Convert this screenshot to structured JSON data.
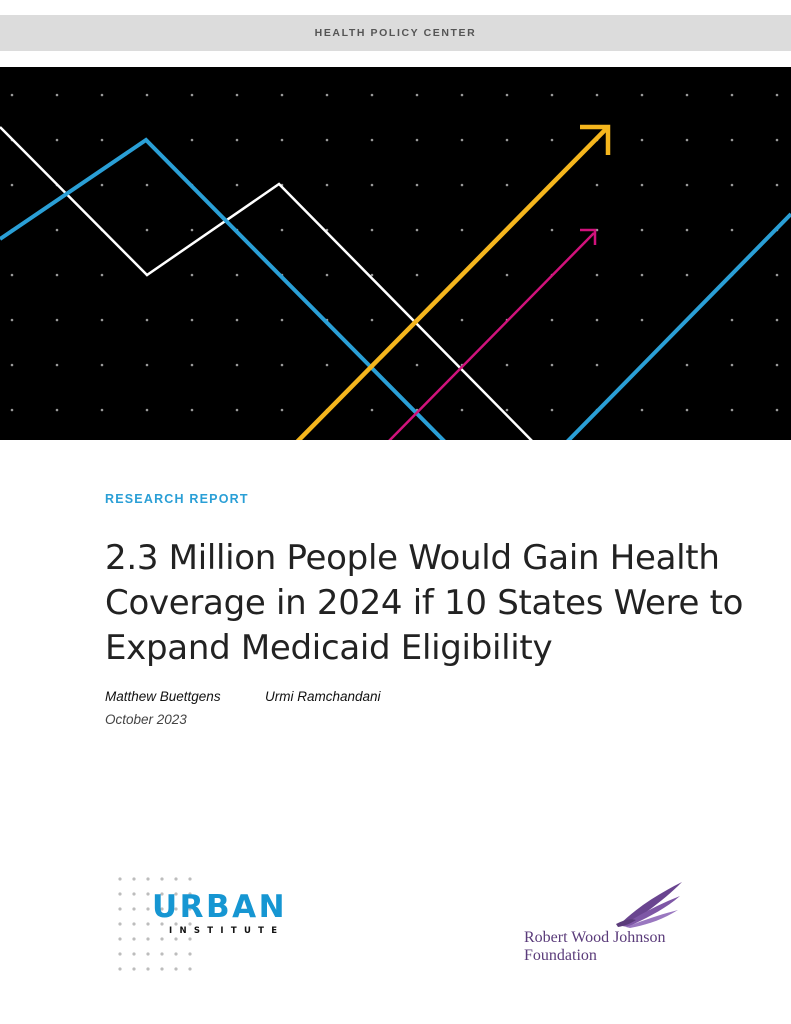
{
  "header": {
    "center_name": "HEALTH POLICY CENTER"
  },
  "cover": {
    "report_type": "RESEARCH REPORT",
    "title_lines": [
      "2.3 Million People Would Gain Health",
      "Coverage in 2024 if 10 States Were to",
      "Expand Medicaid Eligibility"
    ],
    "authors": [
      "Matthew Buettgens",
      "Urmi Ramchandani"
    ],
    "date": "October 2023"
  },
  "logos": {
    "urban": {
      "word": "URBAN",
      "sub": "INSTITUTE",
      "color": "#1696d2"
    },
    "rwjf": {
      "lines": [
        "Robert Wood Johnson",
        "Foundation"
      ],
      "color": "#5a3b7a"
    }
  },
  "colors": {
    "accent_blue": "#2a9fd6",
    "line_yellow": "#f5b61d",
    "line_magenta": "#d1127c",
    "hero_background": "#000000"
  }
}
